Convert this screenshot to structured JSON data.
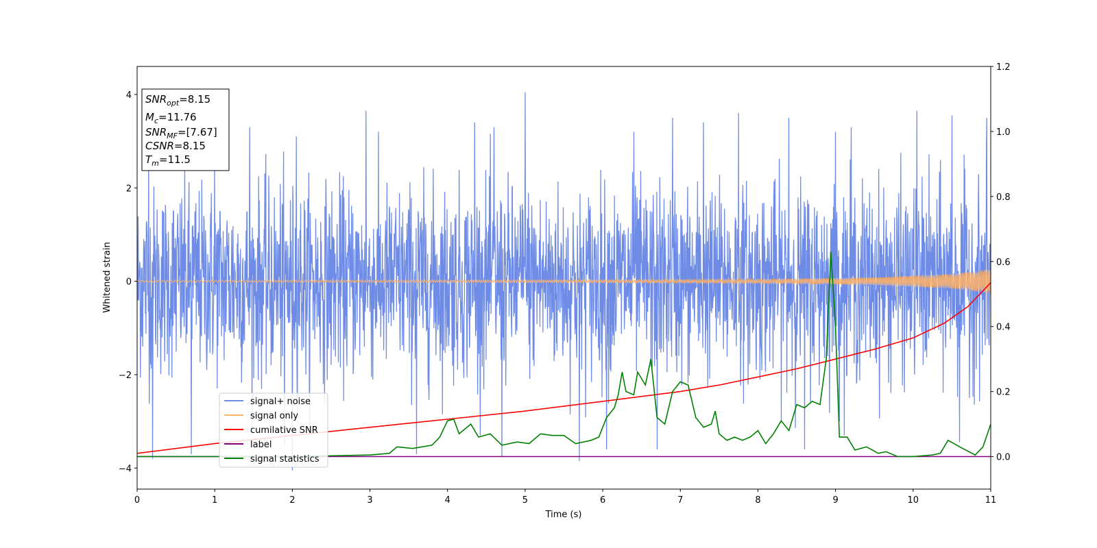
{
  "chart_data": {
    "type": "line",
    "xlabel": "Time (s)",
    "ylabel": "Whitened strain",
    "xlim": [
      0,
      11
    ],
    "ylim": [
      -4.45,
      4.6
    ],
    "y2lim": [
      -0.1,
      1.2
    ],
    "xticks": [
      0,
      1,
      2,
      3,
      4,
      5,
      6,
      7,
      8,
      9,
      10,
      11
    ],
    "yticks": [
      -4,
      -2,
      0,
      2,
      4
    ],
    "y2ticks": [
      "0.0",
      "0.2",
      "0.4",
      "0.6",
      "0.8",
      "1.0",
      "1.2"
    ],
    "grid": false,
    "legend_position": "lower-left",
    "annotation": {
      "lines": [
        {
          "base": "SNR",
          "sub": "opt",
          "value": "=8.15"
        },
        {
          "base": "M",
          "sub": "c",
          "value": "=11.76"
        },
        {
          "base": "SNR",
          "sub": "MF",
          "value": "=[7.67]"
        },
        {
          "base": "CSNR",
          "sub": "",
          "value": "=8.15"
        },
        {
          "base": "T",
          "sub": "m",
          "value": "=11.5"
        }
      ]
    },
    "series": [
      {
        "name": "signal+ noise",
        "axis": "left",
        "color": "#6e8ce6",
        "kind": "noise",
        "sigma": 1.0,
        "peaks_max": [
          [
            0.15,
            2.9
          ],
          [
            1.0,
            2.7
          ],
          [
            1.45,
            3.3
          ],
          [
            2.05,
            3.1
          ],
          [
            2.95,
            3.65
          ],
          [
            4.35,
            3.4
          ],
          [
            4.6,
            3.3
          ],
          [
            5.0,
            4.05
          ],
          [
            5.7,
            3.6
          ],
          [
            6.4,
            3.2
          ],
          [
            6.9,
            3.5
          ],
          [
            7.3,
            3.4
          ],
          [
            7.75,
            3.6
          ],
          [
            8.4,
            3.5
          ],
          [
            9.0,
            3.2
          ],
          [
            9.2,
            3.3
          ],
          [
            10.05,
            3.65
          ],
          [
            10.5,
            3.55
          ],
          [
            10.95,
            3.5
          ]
        ],
        "peaks_min": [
          [
            0.2,
            -3.8
          ],
          [
            0.7,
            -3.7
          ],
          [
            1.9,
            -3.5
          ],
          [
            2.0,
            -4.05
          ],
          [
            3.6,
            -3.7
          ],
          [
            4.7,
            -3.75
          ],
          [
            5.7,
            -3.85
          ],
          [
            6.05,
            -3.6
          ],
          [
            6.7,
            -3.6
          ],
          [
            8.6,
            -3.6
          ],
          [
            9.05,
            -3.0
          ],
          [
            10.6,
            -3.45
          ]
        ]
      },
      {
        "name": "signal only",
        "axis": "left",
        "color": "#ffb266",
        "kind": "chirp",
        "amplitude_points": [
          [
            0,
            0.02
          ],
          [
            5,
            0.025
          ],
          [
            8,
            0.04
          ],
          [
            9.5,
            0.08
          ],
          [
            10.5,
            0.16
          ],
          [
            11,
            0.26
          ]
        ]
      },
      {
        "name": "cumilative SNR",
        "axis": "right",
        "color": "#ff0000",
        "points": [
          [
            0,
            0.01
          ],
          [
            1,
            0.04
          ],
          [
            2,
            0.065
          ],
          [
            3,
            0.09
          ],
          [
            4,
            0.115
          ],
          [
            5,
            0.14
          ],
          [
            6,
            0.17
          ],
          [
            7,
            0.2
          ],
          [
            7.5,
            0.22
          ],
          [
            8,
            0.245
          ],
          [
            8.5,
            0.27
          ],
          [
            9,
            0.3
          ],
          [
            9.5,
            0.33
          ],
          [
            10,
            0.365
          ],
          [
            10.4,
            0.41
          ],
          [
            10.7,
            0.46
          ],
          [
            10.9,
            0.51
          ],
          [
            11,
            0.535
          ]
        ]
      },
      {
        "name": "label",
        "axis": "right",
        "color": "#800080",
        "points": [
          [
            0,
            0.0
          ],
          [
            11,
            0.0
          ]
        ]
      },
      {
        "name": "signal statistics",
        "axis": "right",
        "color": "#008000",
        "points": [
          [
            0,
            0.0
          ],
          [
            1,
            0.0
          ],
          [
            2,
            0.0
          ],
          [
            3,
            0.005
          ],
          [
            3.25,
            0.01
          ],
          [
            3.35,
            0.03
          ],
          [
            3.55,
            0.025
          ],
          [
            3.8,
            0.035
          ],
          [
            3.9,
            0.06
          ],
          [
            4.0,
            0.11
          ],
          [
            4.08,
            0.115
          ],
          [
            4.15,
            0.07
          ],
          [
            4.3,
            0.1
          ],
          [
            4.4,
            0.06
          ],
          [
            4.55,
            0.07
          ],
          [
            4.7,
            0.035
          ],
          [
            4.9,
            0.045
          ],
          [
            5.05,
            0.04
          ],
          [
            5.2,
            0.07
          ],
          [
            5.35,
            0.065
          ],
          [
            5.5,
            0.065
          ],
          [
            5.65,
            0.04
          ],
          [
            5.85,
            0.05
          ],
          [
            5.95,
            0.06
          ],
          [
            6.05,
            0.12
          ],
          [
            6.15,
            0.15
          ],
          [
            6.2,
            0.19
          ],
          [
            6.25,
            0.26
          ],
          [
            6.3,
            0.2
          ],
          [
            6.4,
            0.19
          ],
          [
            6.45,
            0.26
          ],
          [
            6.55,
            0.22
          ],
          [
            6.62,
            0.3
          ],
          [
            6.7,
            0.12
          ],
          [
            6.8,
            0.1
          ],
          [
            6.9,
            0.2
          ],
          [
            7.0,
            0.23
          ],
          [
            7.1,
            0.22
          ],
          [
            7.2,
            0.12
          ],
          [
            7.3,
            0.09
          ],
          [
            7.4,
            0.1
          ],
          [
            7.45,
            0.14
          ],
          [
            7.5,
            0.07
          ],
          [
            7.6,
            0.05
          ],
          [
            7.7,
            0.06
          ],
          [
            7.8,
            0.05
          ],
          [
            7.9,
            0.06
          ],
          [
            8.0,
            0.08
          ],
          [
            8.1,
            0.04
          ],
          [
            8.2,
            0.07
          ],
          [
            8.3,
            0.11
          ],
          [
            8.4,
            0.08
          ],
          [
            8.5,
            0.16
          ],
          [
            8.6,
            0.15
          ],
          [
            8.7,
            0.17
          ],
          [
            8.8,
            0.16
          ],
          [
            8.88,
            0.3
          ],
          [
            8.94,
            0.63
          ],
          [
            9.0,
            0.4
          ],
          [
            9.05,
            0.06
          ],
          [
            9.15,
            0.06
          ],
          [
            9.25,
            0.02
          ],
          [
            9.4,
            0.03
          ],
          [
            9.55,
            0.01
          ],
          [
            9.65,
            0.015
          ],
          [
            9.8,
            0.0
          ],
          [
            10.0,
            0.0
          ],
          [
            10.25,
            0.005
          ],
          [
            10.35,
            0.01
          ],
          [
            10.45,
            0.05
          ],
          [
            10.6,
            0.03
          ],
          [
            10.8,
            0.005
          ],
          [
            10.9,
            0.03
          ],
          [
            11.0,
            0.1
          ]
        ]
      }
    ]
  }
}
